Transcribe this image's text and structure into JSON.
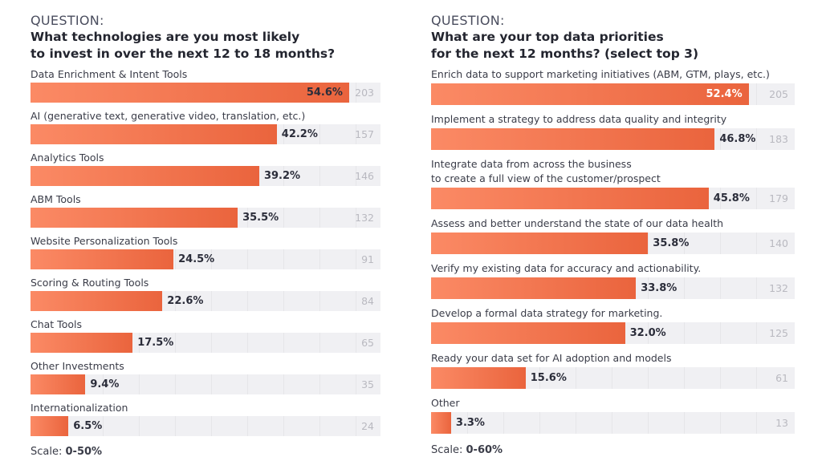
{
  "chart_data": [
    {
      "type": "bar",
      "orientation": "horizontal",
      "question_label": "QUESTION:",
      "title": "What technologies are you most likely\nto invest in over the next 12 to 18 months?",
      "scale_label": "Scale:",
      "scale_value": "0-50%",
      "bar_color_start": "#fb8a65",
      "bar_color_end": "#ea643d",
      "inside_label_color": "#2b2d3a",
      "items": [
        {
          "label": "Data Enrichment & Intent Tools",
          "value": 54.6,
          "value_label": "54.6%",
          "count": "203"
        },
        {
          "label": "AI (generative text, generative video, translation, etc.)",
          "value": 42.2,
          "value_label": "42.2%",
          "count": "157"
        },
        {
          "label": "Analytics Tools",
          "value": 39.2,
          "value_label": "39.2%",
          "count": "146"
        },
        {
          "label": "ABM Tools",
          "value": 35.5,
          "value_label": "35.5%",
          "count": "132"
        },
        {
          "label": "Website Personalization Tools",
          "value": 24.5,
          "value_label": "24.5%",
          "count": "91"
        },
        {
          "label": "Scoring & Routing Tools",
          "value": 22.6,
          "value_label": "22.6%",
          "count": "84"
        },
        {
          "label": "Chat Tools",
          "value": 17.5,
          "value_label": "17.5%",
          "count": "65"
        },
        {
          "label": "Other Investments",
          "value": 9.4,
          "value_label": "9.4%",
          "count": "35"
        },
        {
          "label": "Internationalization",
          "value": 6.5,
          "value_label": "6.5%",
          "count": "24"
        }
      ]
    },
    {
      "type": "bar",
      "orientation": "horizontal",
      "question_label": "QUESTION:",
      "title": "What are your top data priorities\nfor the next 12 months? (select top 3)",
      "scale_label": "Scale:",
      "scale_value": "0-60%",
      "bar_color_start": "#fb8a65",
      "bar_color_end": "#ea643d",
      "inside_label_color": "#ffffff",
      "items": [
        {
          "label": "Enrich data to support marketing initiatives (ABM, GTM, plays, etc.)",
          "value": 52.4,
          "value_label": "52.4%",
          "count": "205"
        },
        {
          "label": "Implement a strategy to address data quality and integrity",
          "value": 46.8,
          "value_label": "46.8%",
          "count": "183"
        },
        {
          "label": "Integrate data from across the business\nto create a full view of the customer/prospect",
          "value": 45.8,
          "value_label": "45.8%",
          "count": "179"
        },
        {
          "label": "Assess and better understand the state of our data health",
          "value": 35.8,
          "value_label": "35.8%",
          "count": "140"
        },
        {
          "label": "Verify my existing data for accuracy and actionability.",
          "value": 33.8,
          "value_label": "33.8%",
          "count": "132"
        },
        {
          "label": "Develop a formal data strategy for marketing.",
          "value": 32.0,
          "value_label": "32.0%",
          "count": "125"
        },
        {
          "label": "Ready your data set for AI adoption and models",
          "value": 15.6,
          "value_label": "15.6%",
          "count": "61"
        },
        {
          "label": "Other",
          "value": 3.3,
          "value_label": "3.3%",
          "count": "13"
        }
      ]
    }
  ]
}
